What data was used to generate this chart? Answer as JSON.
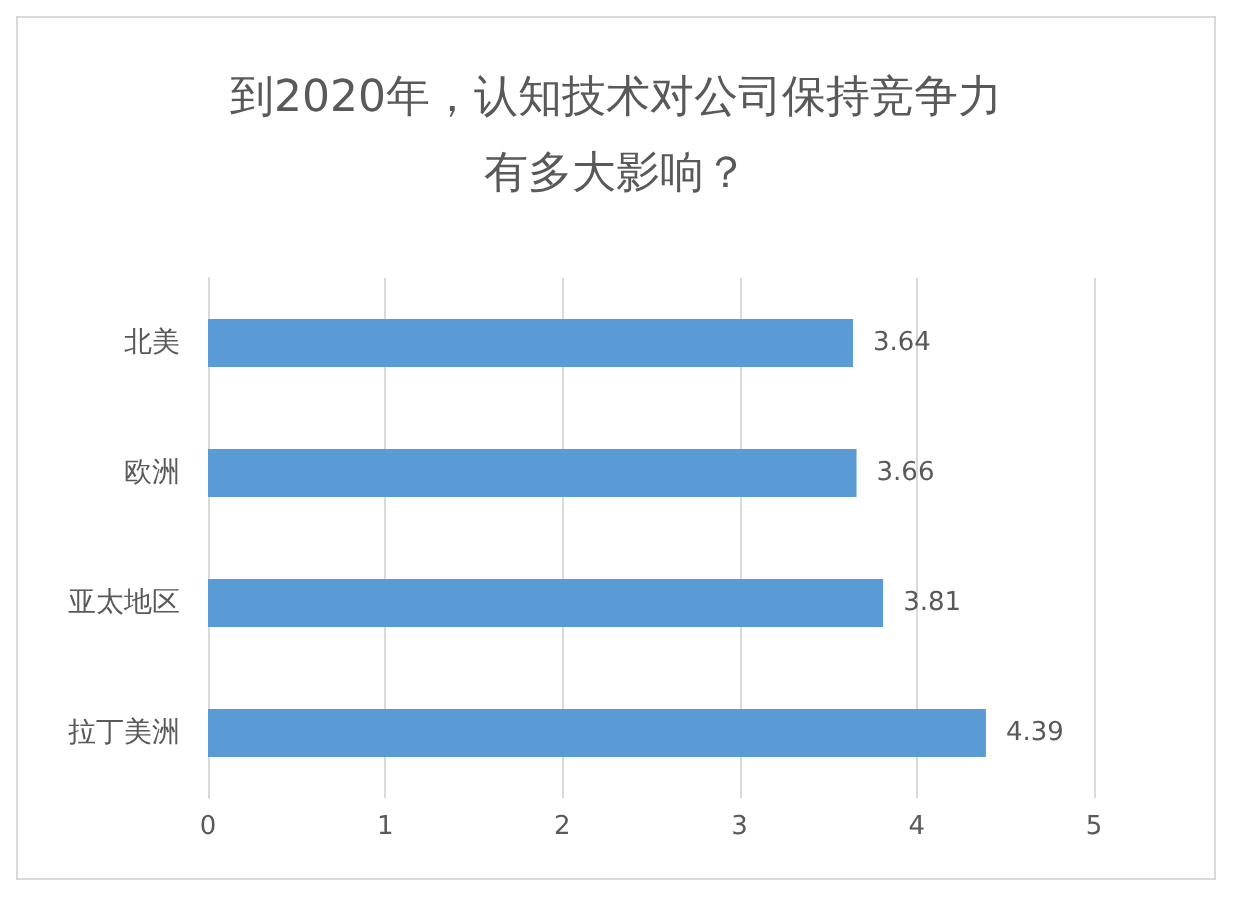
{
  "chart_data": {
    "type": "bar",
    "orientation": "horizontal",
    "title": "到2020年，认知技术对公司保持竞争力有多大影响？",
    "categories": [
      "北美",
      "欧洲",
      "亚太地区",
      "拉丁美洲"
    ],
    "values": [
      3.64,
      3.66,
      3.81,
      4.39
    ],
    "color": "#5b9bd5",
    "xlim": [
      0,
      5
    ],
    "xticks": [
      0,
      1,
      2,
      3,
      4,
      5
    ],
    "grid": "x",
    "data_labels": true
  }
}
